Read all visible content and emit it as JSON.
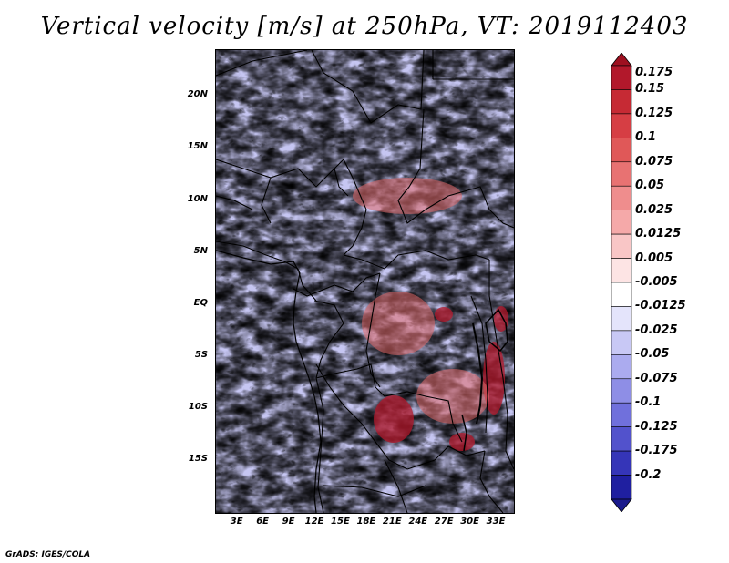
{
  "title": "Vertical velocity [m/s] at 250hPa, VT: 2019112403",
  "credit": "GrADS: IGES/COLA",
  "map": {
    "lat_ticks": [
      "20N",
      "15N",
      "10N",
      "5N",
      "EQ",
      "5S",
      "10S",
      "15S"
    ],
    "lat_values": [
      20,
      15,
      10,
      5,
      0,
      -5,
      -10,
      -15
    ],
    "lon_ticks": [
      "3E",
      "6E",
      "9E",
      "12E",
      "15E",
      "18E",
      "21E",
      "24E",
      "27E",
      "30E",
      "33E"
    ],
    "lon_values": [
      3,
      6,
      9,
      12,
      15,
      18,
      21,
      24,
      27,
      30,
      33
    ],
    "lon_range": [
      0.5,
      35
    ],
    "lat_range": [
      -20,
      24.5
    ]
  },
  "colorbar": {
    "labels": [
      "0.175",
      "0.15",
      "0.125",
      "0.1",
      "0.075",
      "0.05",
      "0.025",
      "0.0125",
      "0.005",
      "-0.005",
      "-0.0125",
      "-0.025",
      "-0.05",
      "-0.075",
      "-0.1",
      "-0.125",
      "-0.175",
      "-0.2"
    ],
    "colors": [
      "#b2182b",
      "#c62a34",
      "#d63e44",
      "#e05858",
      "#e87272",
      "#ef8d8d",
      "#f5a9a9",
      "#f9c6c6",
      "#fde4e4",
      "#ffffff",
      "#e4e4fb",
      "#c8c8f5",
      "#ababef",
      "#8e8ee6",
      "#7070dc",
      "#5252cc",
      "#3535b8",
      "#1f1fa0"
    ],
    "top_arrow_color": "#9e1020",
    "bottom_arrow_color": "#1a1a8c"
  }
}
